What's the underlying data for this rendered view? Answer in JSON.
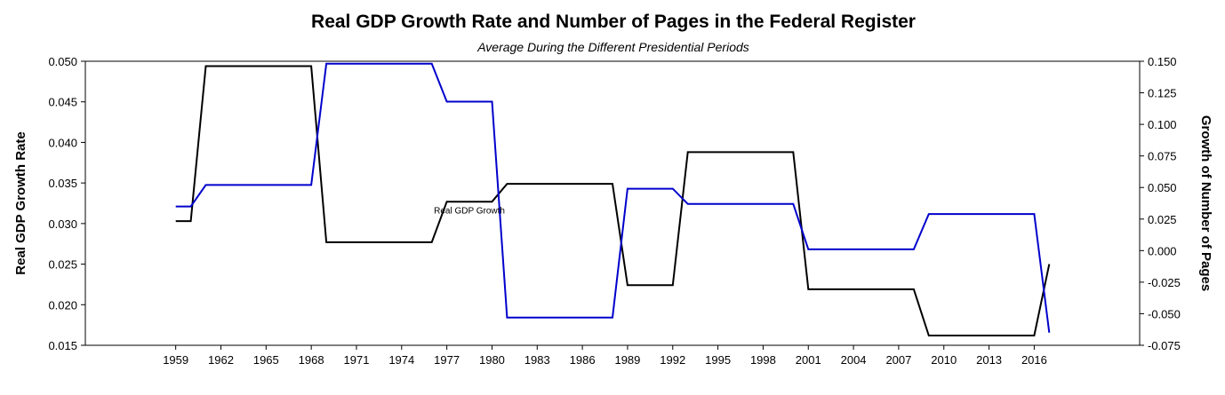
{
  "chart_data": {
    "type": "line",
    "title": "Real GDP Growth Rate and Number of Pages in the Federal Register",
    "subtitle": "Average During the Different Presidential Periods",
    "ylabel": "Real GDP Growth Rate",
    "y2label": "Growth of Number of Pages",
    "xlim": [
      1953,
      2023
    ],
    "ylim": [
      0.015,
      0.05
    ],
    "y2lim": [
      -0.075,
      0.15
    ],
    "x_ticks": [
      "1959",
      "1962",
      "1965",
      "1968",
      "1971",
      "1974",
      "1977",
      "1980",
      "1983",
      "1986",
      "1989",
      "1992",
      "1995",
      "1998",
      "2001",
      "2004",
      "2007",
      "2010",
      "2013",
      "2016"
    ],
    "y_ticks": [
      "0.015",
      "0.020",
      "0.025",
      "0.030",
      "0.035",
      "0.040",
      "0.045",
      "0.050"
    ],
    "y2_ticks": [
      "-0.075",
      "-0.050",
      "-0.025",
      "0.000",
      "0.025",
      "0.050",
      "0.075",
      "0.100",
      "0.125",
      "0.150"
    ],
    "grid": false,
    "annotation": {
      "text": "Real GDP Growth",
      "x": 1978.5,
      "y": 0.0317
    },
    "series": [
      {
        "color": "#000000",
        "axis": "left",
        "x": [
          1959,
          1960,
          1961,
          1968,
          1969,
          1976,
          1977,
          1980,
          1981,
          1988,
          1989,
          1992,
          1993,
          2000,
          2001,
          2008,
          2009,
          2016,
          2017
        ],
        "y": [
          0.0303,
          0.0303,
          0.0494,
          0.0494,
          0.0277,
          0.0277,
          0.0327,
          0.0327,
          0.0349,
          0.0349,
          0.0224,
          0.0224,
          0.0388,
          0.0388,
          0.0219,
          0.0219,
          0.0162,
          0.0162,
          0.025
        ]
      },
      {
        "color": "#0000cc",
        "axis": "right",
        "x": [
          1959,
          1960,
          1961,
          1968,
          1969,
          1976,
          1977,
          1980,
          1981,
          1988,
          1989,
          1992,
          1993,
          2000,
          2001,
          2008,
          2009,
          2016,
          2017
        ],
        "y": [
          0.035,
          0.035,
          0.052,
          0.052,
          0.148,
          0.148,
          0.118,
          0.118,
          -0.053,
          -0.053,
          0.049,
          0.049,
          0.037,
          0.037,
          0.001,
          0.001,
          0.029,
          0.029,
          -0.065
        ]
      }
    ]
  }
}
